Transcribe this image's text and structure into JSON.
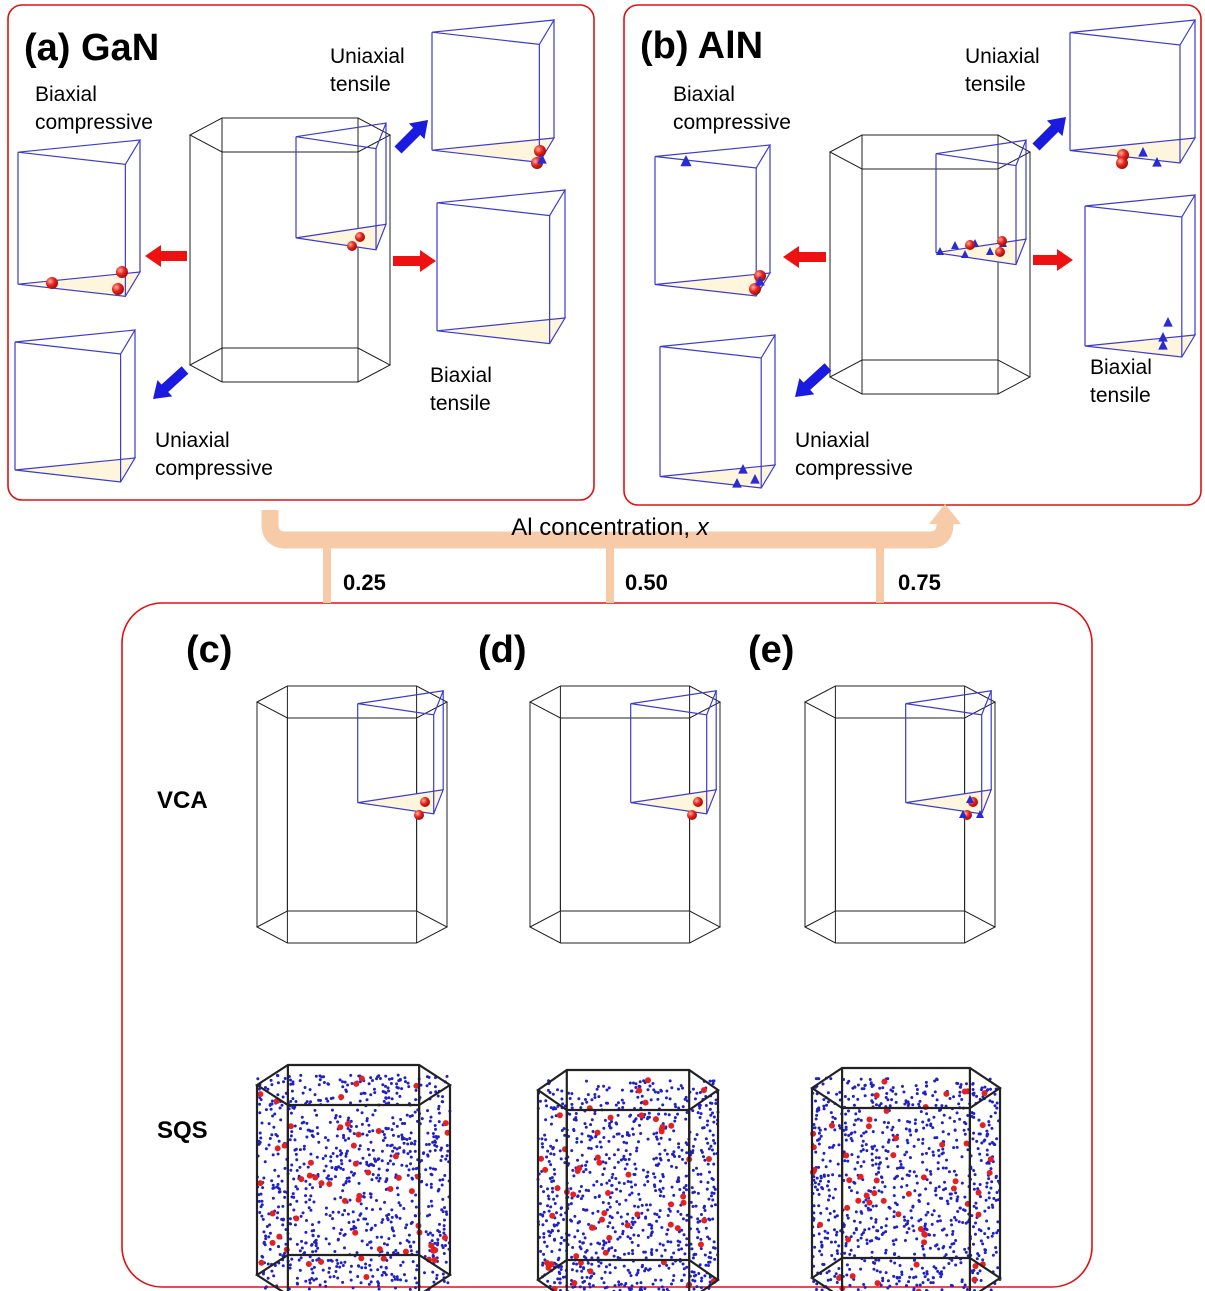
{
  "panels": [
    {
      "title": "(a) GaN",
      "biaxial_compressive": [
        "Biaxial",
        "compressive"
      ],
      "uniaxial_tensile": [
        "Uniaxial",
        "tensile"
      ],
      "biaxial_tensile": [
        "Biaxial",
        "tensile"
      ],
      "uniaxial_compressive": [
        "Uniaxial",
        "compressive"
      ]
    },
    {
      "title": "(b) AlN",
      "biaxial_compressive": [
        "Biaxial",
        "compressive"
      ],
      "uniaxial_tensile": [
        "Uniaxial",
        "tensile"
      ],
      "biaxial_tensile": [
        "Biaxial",
        "tensile"
      ],
      "uniaxial_compressive": [
        "Uniaxial",
        "compressive"
      ]
    }
  ],
  "concentration": {
    "label": "Al concentration, ",
    "variable": "x",
    "values": [
      "0.25",
      "0.50",
      "0.75"
    ]
  },
  "alloys": {
    "titles": [
      "(c)",
      "(d)",
      "(e)"
    ],
    "methods": [
      "VCA",
      "SQS"
    ]
  }
}
